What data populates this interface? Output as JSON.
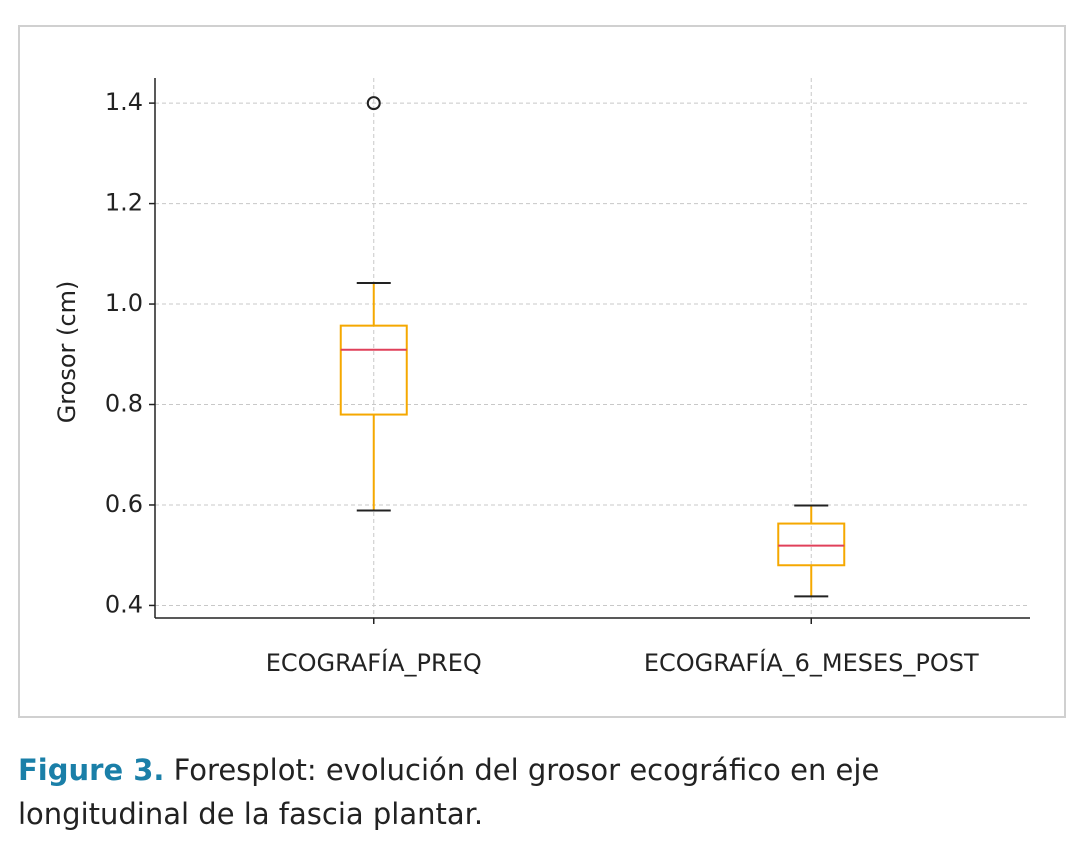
{
  "chart_data": {
    "type": "box",
    "y_label": "Grosor (cm)",
    "categories": [
      "ECOGRAFÍA_PREQ",
      "ECOGRAFÍA_6_MESES_POST"
    ],
    "boxes": [
      {
        "whislo": 0.589,
        "q1": 0.78,
        "med": 0.909,
        "q3": 0.957,
        "whishi": 1.042,
        "fliers": [
          1.4
        ]
      },
      {
        "whislo": 0.418,
        "q1": 0.48,
        "med": 0.519,
        "q3": 0.563,
        "whishi": 0.599,
        "fliers": []
      }
    ],
    "box_color": "#f5a800",
    "median_color": "#e0405a",
    "whisker_color": "#222222",
    "ylim": [
      0.375,
      1.45
    ],
    "yticks": [
      0.4,
      0.6,
      0.8,
      {
        "value": 1.0,
        "label": "1.0"
      },
      1.2,
      1.4
    ],
    "grid": true
  },
  "caption": {
    "label": "Figure 3.",
    "text": "Foresplot: evolución del grosor ecográfico en eje longitudinal de la fascia plantar."
  }
}
